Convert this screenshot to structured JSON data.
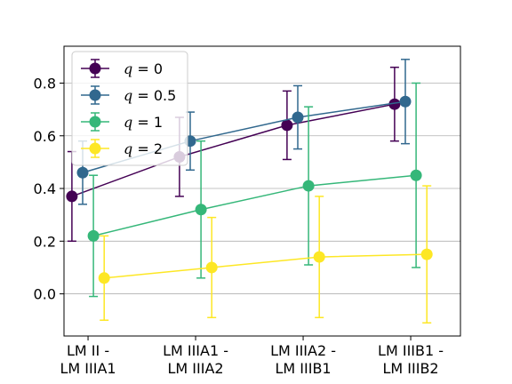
{
  "chart_data": {
    "type": "line",
    "title": "",
    "xlabel": "",
    "ylabel": "",
    "categories": [
      [
        "LM II -",
        "LM IIIA1"
      ],
      [
        "LM IIIA1 -",
        "LM IIIA2"
      ],
      [
        "LM IIIA2 -",
        "LM IIIB1"
      ],
      [
        "LM IIIB1 -",
        "LM IIIB2"
      ]
    ],
    "ylim": [
      -0.16,
      0.94
    ],
    "yticks": [
      "0.0",
      "0.2",
      "0.4",
      "0.6",
      "0.8"
    ],
    "ytick_values": [
      0.0,
      0.2,
      0.4,
      0.6,
      0.8
    ],
    "grid": {
      "y": true,
      "x": false,
      "color": "#b0b0b0"
    },
    "legend": {
      "placement": "top-left"
    },
    "series": [
      {
        "name_var": "q",
        "name_value": " = 0",
        "color": "#440154",
        "offset": -0.1,
        "values": [
          0.37,
          0.52,
          0.64,
          0.72
        ],
        "err_low": [
          0.2,
          0.37,
          0.51,
          0.58
        ],
        "err_high": [
          0.54,
          0.67,
          0.77,
          0.86
        ]
      },
      {
        "name_var": "q",
        "name_value": " = 0.5",
        "color": "#31688e",
        "offset": 0.0,
        "values": [
          0.46,
          0.58,
          0.67,
          0.73
        ],
        "err_low": [
          0.34,
          0.47,
          0.55,
          0.57
        ],
        "err_high": [
          0.58,
          0.69,
          0.79,
          0.89
        ]
      },
      {
        "name_var": "q",
        "name_value": " = 1",
        "color": "#35b779",
        "offset": 0.1,
        "values": [
          0.22,
          0.32,
          0.41,
          0.45
        ],
        "err_low": [
          -0.01,
          0.06,
          0.11,
          0.1
        ],
        "err_high": [
          0.45,
          0.58,
          0.71,
          0.8
        ]
      },
      {
        "name_var": "q",
        "name_value": " = 2",
        "color": "#fde725",
        "offset": 0.2,
        "values": [
          0.06,
          0.1,
          0.14,
          0.15
        ],
        "err_low": [
          -0.1,
          -0.09,
          -0.09,
          -0.11
        ],
        "err_high": [
          0.22,
          0.29,
          0.37,
          0.41
        ]
      }
    ]
  }
}
